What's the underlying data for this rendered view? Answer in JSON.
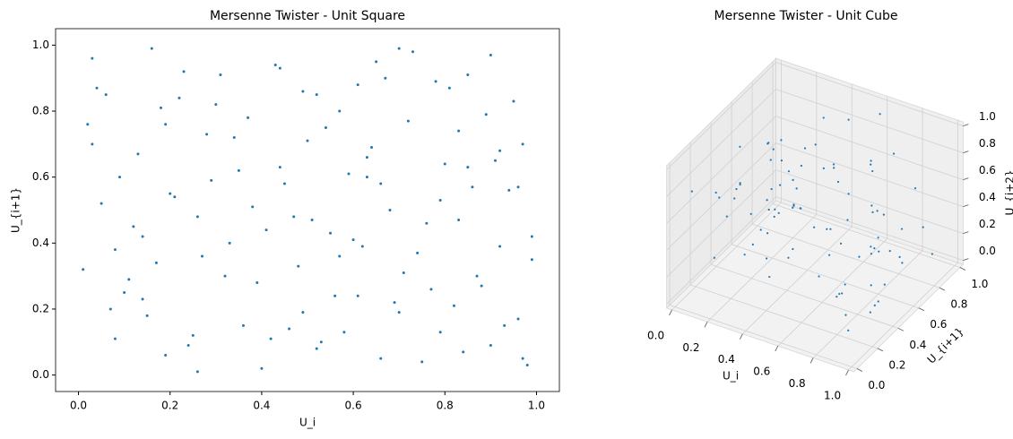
{
  "chart_data": [
    {
      "type": "scatter",
      "title": "Mersenne Twister - Unit Square",
      "x_label": "U_i",
      "y_label": "U_{i+1}",
      "color": "#1f77b4",
      "xlim": [
        -0.05,
        1.05
      ],
      "ylim": [
        -0.05,
        1.05
      ],
      "xticks": [
        {
          "value": 0,
          "label": "0.0"
        },
        0.2,
        0.4,
        0.6,
        0.8,
        {
          "value": 1,
          "label": "1.0"
        }
      ],
      "yticks": [
        {
          "value": 0,
          "label": "0.0"
        },
        0.2,
        0.4,
        0.6,
        0.8,
        {
          "value": 1,
          "label": "1.0"
        }
      ],
      "x": [
        0.03,
        0.12,
        0.25,
        0.37,
        0.48,
        0.59,
        0.66,
        0.78,
        0.88,
        0.97,
        0.05,
        0.15,
        0.22,
        0.33,
        0.44,
        0.52,
        0.63,
        0.71,
        0.83,
        0.93,
        0.08,
        0.18,
        0.29,
        0.4,
        0.51,
        0.61,
        0.69,
        0.8,
        0.9,
        0.99,
        0.02,
        0.11,
        0.2,
        0.31,
        0.42,
        0.55,
        0.64,
        0.75,
        0.86,
        0.95,
        0.07,
        0.16,
        0.27,
        0.35,
        0.46,
        0.57,
        0.68,
        0.77,
        0.84,
        0.92,
        0.04,
        0.14,
        0.24,
        0.34,
        0.45,
        0.56,
        0.65,
        0.74,
        0.85,
        0.96,
        0.09,
        0.19,
        0.28,
        0.39,
        0.49,
        0.6,
        0.7,
        0.79,
        0.89,
        0.98,
        0.01,
        0.13,
        0.23,
        0.36,
        0.47,
        0.54,
        0.62,
        0.73,
        0.82,
        0.94,
        0.06,
        0.17,
        0.26,
        0.38,
        0.5,
        0.58,
        0.67,
        0.76,
        0.87,
        0.91,
        0.1,
        0.21,
        0.3,
        0.41,
        0.53,
        0.63,
        0.72,
        0.81,
        0.92,
        0.97,
        0.03,
        0.14,
        0.26,
        0.43,
        0.49,
        0.57,
        0.66,
        0.79,
        0.85,
        0.99,
        0.08,
        0.19,
        0.32,
        0.44,
        0.52,
        0.61,
        0.7,
        0.83,
        0.9,
        0.96
      ],
      "y": [
        0.96,
        0.45,
        0.12,
        0.78,
        0.33,
        0.61,
        0.05,
        0.89,
        0.27,
        0.7,
        0.52,
        0.18,
        0.84,
        0.4,
        0.93,
        0.08,
        0.66,
        0.31,
        0.74,
        0.15,
        0.38,
        0.81,
        0.59,
        0.02,
        0.47,
        0.88,
        0.22,
        0.64,
        0.97,
        0.35,
        0.76,
        0.29,
        0.55,
        0.91,
        0.11,
        0.43,
        0.69,
        0.04,
        0.57,
        0.83,
        0.2,
        0.99,
        0.36,
        0.62,
        0.14,
        0.8,
        0.5,
        0.26,
        0.07,
        0.68,
        0.87,
        0.42,
        0.09,
        0.72,
        0.58,
        0.24,
        0.95,
        0.37,
        0.63,
        0.17,
        0.6,
        0.06,
        0.73,
        0.28,
        0.86,
        0.41,
        0.19,
        0.53,
        0.79,
        0.03,
        0.32,
        0.67,
        0.92,
        0.15,
        0.48,
        0.75,
        0.39,
        0.98,
        0.21,
        0.56,
        0.85,
        0.34,
        0.01,
        0.51,
        0.71,
        0.13,
        0.9,
        0.46,
        0.3,
        0.65,
        0.25,
        0.54,
        0.82,
        0.44,
        0.1,
        0.6,
        0.77,
        0.87,
        0.39,
        0.05,
        0.7,
        0.23,
        0.48,
        0.94,
        0.19,
        0.36,
        0.58,
        0.13,
        0.91,
        0.42,
        0.11,
        0.76,
        0.3,
        0.63,
        0.85,
        0.24,
        0.99,
        0.47,
        0.09,
        0.57
      ]
    },
    {
      "type": "scatter3d",
      "title": "Mersenne Twister - Unit Cube",
      "x_label": "U_i",
      "y_label": "U_{i+1}",
      "z_label": "U_{i+2}",
      "color": "#1f77b4",
      "xlim": [
        -0.03,
        1.03
      ],
      "ylim": [
        -0.03,
        1.03
      ],
      "zlim": [
        -0.03,
        1.03
      ],
      "xticks": [
        {
          "value": 0,
          "label": "0.0"
        },
        0.2,
        0.4,
        0.6,
        0.8,
        {
          "value": 1,
          "label": "1.0"
        }
      ],
      "yticks": [
        {
          "value": 0,
          "label": "0.0"
        },
        0.2,
        0.4,
        0.6,
        0.8,
        {
          "value": 1,
          "label": "1.0"
        }
      ],
      "zticks": [
        {
          "value": 0,
          "label": "0.0"
        },
        0.2,
        0.4,
        0.6,
        0.8,
        {
          "value": 1,
          "label": "1.0"
        }
      ],
      "x": [
        0.12,
        0.55,
        0.83,
        0.27,
        0.68,
        0.91,
        0.04,
        0.39,
        0.76,
        0.2,
        0.61,
        0.95,
        0.33,
        0.47,
        0.88,
        0.09,
        0.52,
        0.71,
        0.17,
        0.99,
        0.44,
        0.26,
        0.8,
        0.63,
        0.06,
        0.37,
        0.92,
        0.58,
        0.14,
        0.73,
        0.29,
        0.85,
        0.49,
        0.02,
        0.66,
        0.41,
        0.97,
        0.23,
        0.78,
        0.55,
        0.11,
        0.87,
        0.35,
        0.6,
        0.19,
        0.94,
        0.46,
        0.7,
        0.31,
        0.08,
        0.82,
        0.57,
        0.25,
        0.65,
        0.43,
        0.9,
        0.16,
        0.74,
        0.38,
        0.53,
        0.98,
        0.28,
        0.62,
        0.05,
        0.79,
        0.45,
        0.21,
        0.86,
        0.34,
        0.69,
        0.13,
        0.51,
        0.93,
        0.4,
        0.75,
        0.03,
        0.59,
        0.84,
        0.22,
        0.67,
        0.48,
        0.1,
        0.89,
        0.32,
        0.72,
        0.56,
        0.18,
        0.96,
        0.42,
        0.64
      ],
      "y": [
        0.73,
        0.21,
        0.48,
        0.9,
        0.05,
        0.62,
        0.36,
        0.84,
        0.17,
        0.55,
        0.98,
        0.29,
        0.66,
        0.11,
        0.43,
        0.8,
        0.02,
        0.57,
        0.34,
        0.71,
        0.92,
        0.15,
        0.6,
        0.27,
        0.86,
        0.47,
        0.08,
        0.69,
        0.39,
        0.95,
        0.24,
        0.52,
        0.77,
        0.13,
        0.41,
        0.88,
        0.31,
        0.64,
        0.06,
        0.5,
        0.83,
        0.19,
        0.58,
        0.96,
        0.35,
        0.72,
        0.1,
        0.45,
        0.91,
        0.26,
        0.68,
        0.03,
        0.54,
        0.79,
        0.16,
        0.42,
        0.87,
        0.3,
        0.61,
        0.99,
        0.22,
        0.74,
        0.09,
        0.49,
        0.85,
        0.37,
        0.67,
        0.12,
        0.56,
        0.94,
        0.28,
        0.81,
        0.44,
        0.07,
        0.63,
        0.33,
        0.89,
        0.18,
        0.53,
        0.76,
        0.01,
        0.46,
        0.97,
        0.38,
        0.7,
        0.14,
        0.59,
        0.25,
        0.82,
        0.4
      ],
      "z": [
        0.35,
        0.81,
        0.14,
        0.62,
        0.97,
        0.28,
        0.53,
        0.09,
        0.76,
        0.44,
        0.19,
        0.88,
        0.67,
        0.32,
        0.05,
        0.58,
        0.91,
        0.23,
        0.7,
        0.47,
        0.12,
        0.85,
        0.39,
        0.64,
        0.02,
        0.79,
        0.26,
        0.55,
        0.93,
        0.16,
        0.61,
        0.37,
        0.08,
        0.74,
        0.99,
        0.42,
        0.21,
        0.68,
        0.5,
        0.87,
        0.3,
        0.04,
        0.57,
        0.95,
        0.18,
        0.73,
        0.46,
        0.11,
        0.83,
        0.66,
        0.24,
        0.9,
        0.4,
        0.06,
        0.59,
        0.77,
        0.33,
        0.15,
        0.86,
        0.52,
        0.69,
        0.27,
        0.94,
        0.43,
        0.01,
        0.63,
        0.8,
        0.36,
        0.13,
        0.71,
        0.49,
        0.98,
        0.22,
        0.56,
        0.84,
        0.1,
        0.65,
        0.31,
        0.89,
        0.45,
        0.75,
        0.59,
        0.03,
        0.92,
        0.2,
        0.48,
        0.82,
        0.17,
        0.6,
        0.34
      ]
    }
  ]
}
